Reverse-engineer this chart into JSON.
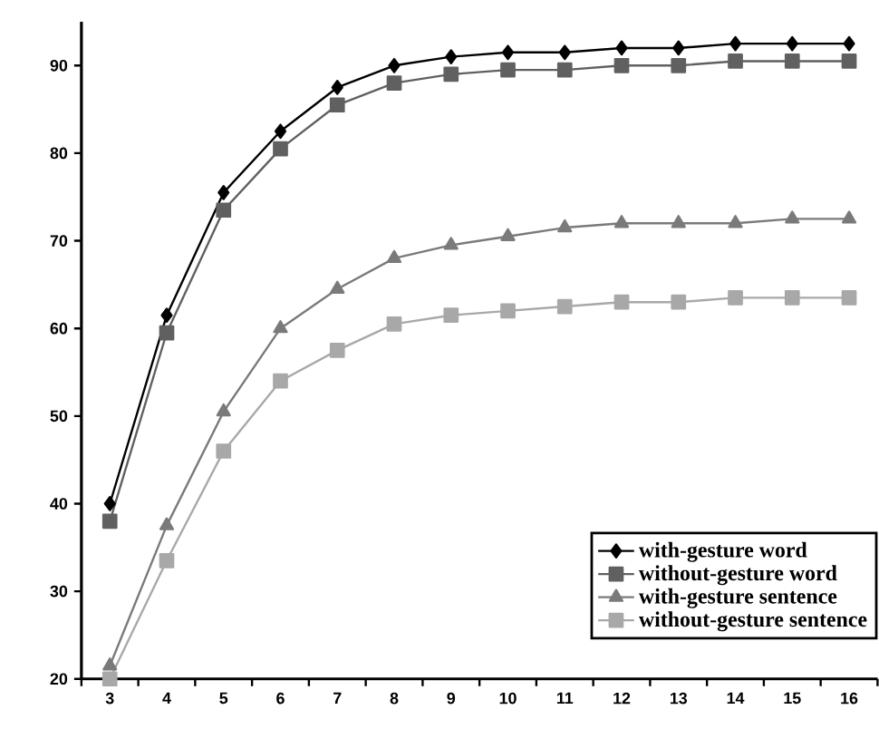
{
  "chart_data": {
    "type": "line",
    "categories": [
      "3",
      "4",
      "5",
      "6",
      "7",
      "8",
      "9",
      "10",
      "11",
      "12",
      "13",
      "14",
      "15",
      "16"
    ],
    "ylim": [
      20,
      95
    ],
    "yticks": [
      20,
      30,
      40,
      50,
      60,
      70,
      80,
      90
    ],
    "grid": false,
    "legend": "bottom right",
    "line_style": "solid",
    "series": [
      {
        "name": "with-gesture word",
        "color": "#000000",
        "marker": "diamond",
        "values": [
          40,
          61.5,
          75.5,
          82.5,
          87.5,
          90,
          91,
          91.5,
          91.5,
          92,
          92,
          92.5,
          92.5,
          92.5
        ]
      },
      {
        "name": "without-gesture word",
        "color": "#606060",
        "marker": "square",
        "values": [
          38,
          59.5,
          73.5,
          80.5,
          85.5,
          88,
          89,
          89.5,
          89.5,
          90,
          90,
          90.5,
          90.5,
          90.5
        ]
      },
      {
        "name": "with-gesture sentence",
        "color": "#7a7a7a",
        "marker": "triangle",
        "values": [
          21.5,
          37.5,
          50.5,
          60,
          64.5,
          68,
          69.5,
          70.5,
          71.5,
          72,
          72,
          72,
          72.5,
          72.5
        ]
      },
      {
        "name": "without-gesture sentence",
        "color": "#a8a8a8",
        "marker": "square",
        "values": [
          20,
          33.5,
          46,
          54,
          57.5,
          60.5,
          61.5,
          62,
          62.5,
          63,
          63,
          63.5,
          63.5,
          63.5
        ]
      }
    ]
  }
}
